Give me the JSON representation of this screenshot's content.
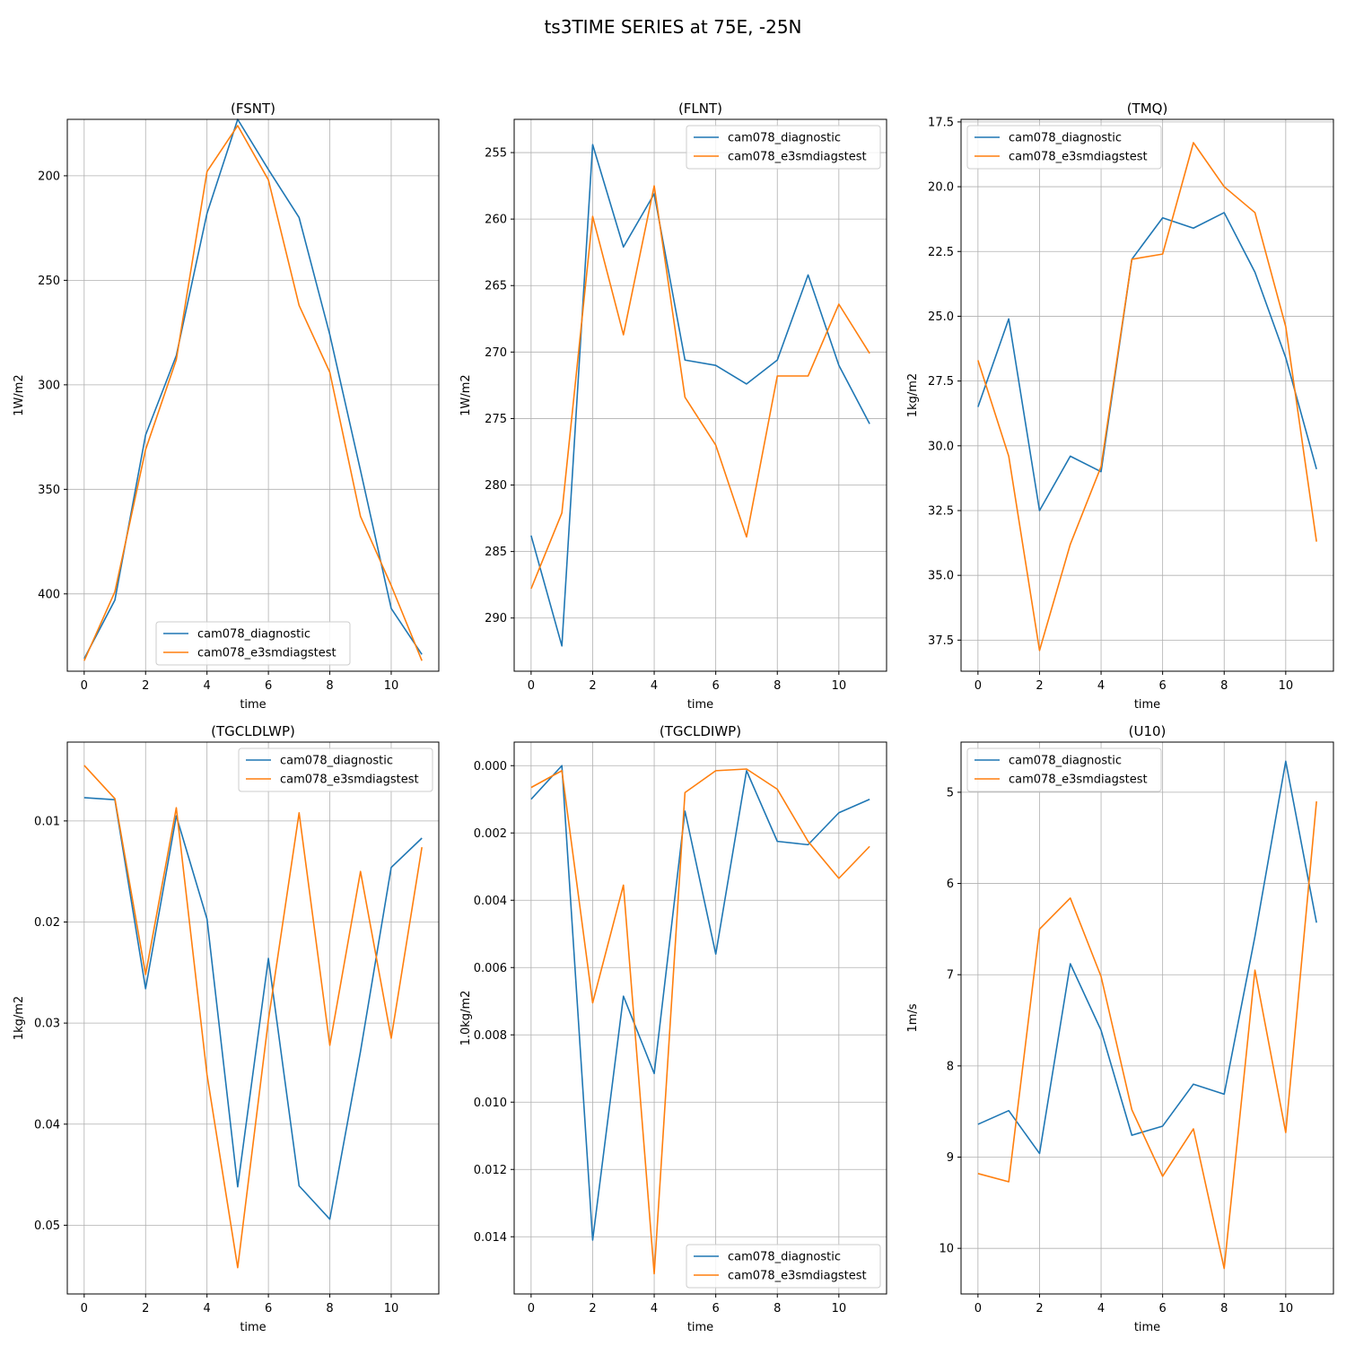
{
  "figure": {
    "title": "ts3TIME SERIES at 75E, -25N",
    "colors": {
      "cam078_diagnostic": "#1f77b4",
      "cam078_e3smdiagstest": "#ff7f0e"
    }
  },
  "chart_data": [
    {
      "type": "line",
      "title": "(FSNT)",
      "xlabel": "time",
      "ylabel": "1W/m2",
      "x": [
        0,
        1,
        2,
        3,
        4,
        5,
        6,
        7,
        8,
        9,
        10,
        11
      ],
      "xticks": [
        0,
        2,
        4,
        6,
        8,
        10
      ],
      "xlim": [
        -0.55,
        11.55
      ],
      "ylim": [
        437,
        173
      ],
      "y_inverted": true,
      "yticks": [
        200,
        250,
        300,
        350,
        400
      ],
      "yticklabels": [
        "200",
        "250",
        "300",
        "350",
        "400"
      ],
      "grid": true,
      "legend": "lower center",
      "series": [
        {
          "name": "cam078_diagnostic",
          "color": "#1f77b4",
          "values": [
            431,
            403,
            324,
            286,
            218,
            173,
            197,
            220,
            276,
            341,
            407,
            429
          ]
        },
        {
          "name": "cam078_e3smdiagstest",
          "color": "#ff7f0e",
          "values": [
            432,
            399,
            331,
            288,
            198,
            176,
            202,
            262,
            294,
            363,
            396,
            432
          ]
        }
      ]
    },
    {
      "type": "line",
      "title": "(FLNT)",
      "xlabel": "time",
      "ylabel": "1W/m2",
      "x": [
        0,
        1,
        2,
        3,
        4,
        5,
        6,
        7,
        8,
        9,
        10,
        11
      ],
      "xticks": [
        0,
        2,
        4,
        6,
        8,
        10
      ],
      "xlim": [
        -0.55,
        11.55
      ],
      "ylim": [
        294,
        252.5
      ],
      "y_inverted": true,
      "yticks": [
        255,
        260,
        265,
        270,
        275,
        280,
        285,
        290
      ],
      "yticklabels": [
        "255",
        "260",
        "265",
        "270",
        "275",
        "280",
        "285",
        "290"
      ],
      "grid": true,
      "legend": "upper right",
      "series": [
        {
          "name": "cam078_diagnostic",
          "color": "#1f77b4",
          "values": [
            283.8,
            292.1,
            254.4,
            262.1,
            258.1,
            270.6,
            271.0,
            272.4,
            270.6,
            264.2,
            271.0,
            275.4
          ]
        },
        {
          "name": "cam078_e3smdiagstest",
          "color": "#ff7f0e",
          "values": [
            287.8,
            282.1,
            259.8,
            268.7,
            257.5,
            273.4,
            277.0,
            283.9,
            271.8,
            271.8,
            266.4,
            270.1
          ]
        }
      ]
    },
    {
      "type": "line",
      "title": "(TMQ)",
      "xlabel": "time",
      "ylabel": "1kg/m2",
      "x": [
        0,
        1,
        2,
        3,
        4,
        5,
        6,
        7,
        8,
        9,
        10,
        11
      ],
      "xticks": [
        0,
        2,
        4,
        6,
        8,
        10
      ],
      "xlim": [
        -0.55,
        11.55
      ],
      "ylim": [
        38.7,
        17.4
      ],
      "y_inverted": true,
      "yticks": [
        17.5,
        20.0,
        22.5,
        25.0,
        27.5,
        30.0,
        32.5,
        35.0,
        37.5
      ],
      "yticklabels": [
        "17.5",
        "20.0",
        "22.5",
        "25.0",
        "27.5",
        "30.0",
        "32.5",
        "35.0",
        "37.5"
      ],
      "grid": true,
      "legend": "upper left",
      "series": [
        {
          "name": "cam078_diagnostic",
          "color": "#1f77b4",
          "values": [
            28.5,
            25.1,
            32.5,
            30.4,
            31.0,
            22.8,
            21.2,
            21.6,
            21.0,
            23.3,
            26.6,
            30.9
          ]
        },
        {
          "name": "cam078_e3smdiagstest",
          "color": "#ff7f0e",
          "values": [
            26.7,
            30.4,
            37.9,
            33.8,
            30.8,
            22.8,
            22.6,
            18.3,
            20.0,
            21.0,
            25.4,
            33.7
          ]
        }
      ]
    },
    {
      "type": "line",
      "title": "(TGCLDLWP)",
      "xlabel": "time",
      "ylabel": "1kg/m2",
      "x": [
        0,
        1,
        2,
        3,
        4,
        5,
        6,
        7,
        8,
        9,
        10,
        11
      ],
      "xticks": [
        0,
        2,
        4,
        6,
        8,
        10
      ],
      "xlim": [
        -0.55,
        11.55
      ],
      "ylim": [
        0.0568,
        0.0022
      ],
      "y_inverted": true,
      "yticks": [
        0.01,
        0.02,
        0.03,
        0.04,
        0.05
      ],
      "yticklabels": [
        "0.01",
        "0.02",
        "0.03",
        "0.04",
        "0.05"
      ],
      "grid": true,
      "legend": "upper right",
      "series": [
        {
          "name": "cam078_diagnostic",
          "color": "#1f77b4",
          "values": [
            0.0077,
            0.0079,
            0.0266,
            0.0095,
            0.0197,
            0.0462,
            0.0236,
            0.0461,
            0.0494,
            0.0328,
            0.0146,
            0.0117
          ]
        },
        {
          "name": "cam078_e3smdiagstest",
          "color": "#ff7f0e",
          "values": [
            0.0045,
            0.0078,
            0.0252,
            0.0087,
            0.0351,
            0.0542,
            0.0297,
            0.0092,
            0.0322,
            0.015,
            0.0315,
            0.0126
          ]
        }
      ]
    },
    {
      "type": "line",
      "title": "(TGCLDIWP)",
      "xlabel": "time",
      "ylabel": "1.0kg/m2",
      "x": [
        0,
        1,
        2,
        3,
        4,
        5,
        6,
        7,
        8,
        9,
        10,
        11
      ],
      "xticks": [
        0,
        2,
        4,
        6,
        8,
        10
      ],
      "xlim": [
        -0.55,
        11.55
      ],
      "ylim": [
        0.0157,
        -0.0007
      ],
      "y_inverted": true,
      "yticks": [
        0.0,
        0.002,
        0.004,
        0.006,
        0.008,
        0.01,
        0.012,
        0.014
      ],
      "yticklabels": [
        "0.000",
        "0.002",
        "0.004",
        "0.006",
        "0.008",
        "0.010",
        "0.012",
        "0.014"
      ],
      "grid": true,
      "legend": "lower right",
      "series": [
        {
          "name": "cam078_diagnostic",
          "color": "#1f77b4",
          "values": [
            0.001,
            0.0,
            0.0141,
            0.00685,
            0.00915,
            0.00135,
            0.0056,
            0.00015,
            0.00225,
            0.00235,
            0.0014,
            0.001
          ]
        },
        {
          "name": "cam078_e3smdiagstest",
          "color": "#ff7f0e",
          "values": [
            0.00065,
            0.00015,
            0.00705,
            0.00355,
            0.0151,
            0.0008,
            0.00015,
            0.0001,
            0.0007,
            0.00225,
            0.00335,
            0.0024
          ]
        }
      ]
    },
    {
      "type": "line",
      "title": "(U10)",
      "xlabel": "time",
      "ylabel": "1m/s",
      "x": [
        0,
        1,
        2,
        3,
        4,
        5,
        6,
        7,
        8,
        9,
        10,
        11
      ],
      "xticks": [
        0,
        2,
        4,
        6,
        8,
        10
      ],
      "xlim": [
        -0.55,
        11.55
      ],
      "ylim": [
        10.5,
        4.45
      ],
      "y_inverted": true,
      "yticks": [
        5,
        6,
        7,
        8,
        9,
        10
      ],
      "yticklabels": [
        "5",
        "6",
        "7",
        "8",
        "9",
        "10"
      ],
      "grid": true,
      "legend": "upper left",
      "series": [
        {
          "name": "cam078_diagnostic",
          "color": "#1f77b4",
          "values": [
            8.64,
            8.49,
            8.96,
            6.88,
            7.61,
            8.76,
            8.66,
            8.2,
            8.31,
            6.58,
            4.66,
            6.43
          ]
        },
        {
          "name": "cam078_e3smdiagstest",
          "color": "#ff7f0e",
          "values": [
            9.18,
            9.27,
            6.5,
            6.16,
            7.02,
            8.48,
            9.21,
            8.69,
            10.22,
            6.95,
            8.73,
            5.1
          ]
        }
      ]
    }
  ]
}
